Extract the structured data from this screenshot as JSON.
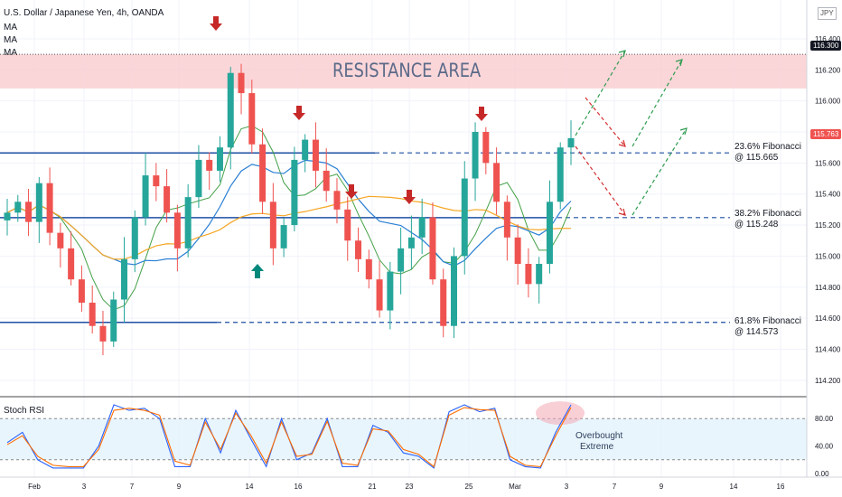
{
  "header": {
    "title": "U.S. Dollar / Japanese Yen, 4h, OANDA",
    "ma_labels": [
      "MA",
      "MA",
      "MA"
    ],
    "currency": "JPY"
  },
  "annotations": {
    "resistance": "RESISTANCE AREA",
    "fib_236": [
      "23.6% Fibonacci",
      "@ 115.665"
    ],
    "fib_382": [
      "38.2% Fibonacci",
      "@ 115.248"
    ],
    "fib_618": [
      "61.8% Fibonacci",
      "@ 114.573"
    ],
    "overbought": [
      "Overbought",
      "Extreme"
    ]
  },
  "badges": {
    "resistance_price": "116.300",
    "last_price": "115.763"
  },
  "rsi_panel": {
    "title": "Stoch RSI",
    "ticks": [
      "80.00",
      "40.00",
      "0.00"
    ]
  },
  "colors": {
    "bull": "#26a69a",
    "bear": "#ef5350",
    "resistance_zone": "#f9c8cc",
    "fib_line": "#1e4fa3",
    "ma_blue": "#2a7fd4",
    "ma_green": "#43a047",
    "ma_orange": "#f5a623",
    "arrow_red": "#c62828",
    "arrow_green": "#00897b"
  },
  "chart_data": [
    {
      "type": "candlestick",
      "title": "U.S. Dollar / Japanese Yen, 4h, OANDA",
      "ylim": [
        114.1,
        116.65
      ],
      "y_ticks": [
        "116.400",
        "116.200",
        "116.000",
        "115.800",
        "115.600",
        "115.400",
        "115.200",
        "115.000",
        "114.800",
        "114.600",
        "114.400",
        "114.200"
      ],
      "x_ticks": [
        "Feb",
        "3",
        "7",
        "9",
        "14",
        "16",
        "21",
        "23",
        "25",
        "Mar",
        "3",
        "7",
        "9",
        "14",
        "16"
      ],
      "fibonacci_levels": [
        115.665,
        115.248,
        114.573
      ],
      "resistance_zone": [
        116.08,
        116.3
      ],
      "last_price": 115.763,
      "close_path": [
        115.28,
        115.35,
        115.22,
        115.47,
        115.15,
        115.05,
        114.85,
        114.7,
        114.55,
        114.45,
        114.72,
        114.98,
        115.25,
        115.52,
        115.45,
        115.28,
        115.05,
        115.38,
        115.62,
        115.55,
        115.7,
        116.18,
        116.05,
        115.72,
        115.35,
        115.05,
        115.2,
        115.62,
        115.75,
        115.55,
        115.42,
        115.3,
        115.1,
        114.98,
        114.85,
        114.65,
        114.9,
        115.05,
        115.12,
        115.25,
        114.85,
        114.55,
        115.0,
        115.5,
        115.8,
        115.6,
        115.35,
        115.12,
        114.95,
        114.82,
        114.95,
        115.35,
        115.7,
        115.76
      ]
    },
    {
      "type": "line",
      "title": "Stoch RSI",
      "ylim": [
        0,
        100
      ],
      "y_ticks": [
        80,
        40,
        0
      ],
      "series": [
        {
          "values": [
            45,
            60,
            20,
            8,
            8,
            8,
            40,
            100,
            92,
            95,
            80,
            10,
            10,
            80,
            30,
            92,
            50,
            10,
            80,
            20,
            30,
            80,
            10,
            10,
            70,
            60,
            30,
            25,
            8,
            90,
            100,
            90,
            95,
            20,
            10,
            8,
            60,
            100
          ]
        },
        {
          "values": [
            42,
            55,
            25,
            12,
            10,
            10,
            35,
            92,
            95,
            92,
            85,
            18,
            12,
            75,
            35,
            88,
            55,
            15,
            75,
            25,
            28,
            76,
            15,
            12,
            65,
            62,
            35,
            28,
            10,
            85,
            96,
            93,
            92,
            25,
            12,
            10,
            55,
            96
          ]
        }
      ]
    }
  ]
}
